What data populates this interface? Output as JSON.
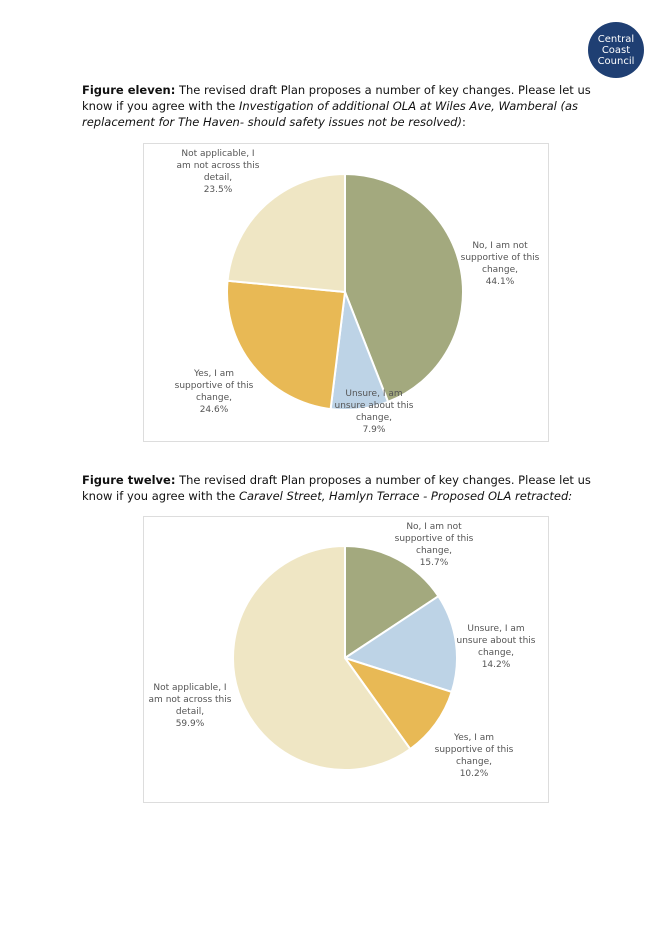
{
  "logo": {
    "lines": [
      "Central",
      "Coast",
      "Council"
    ]
  },
  "figures": [
    {
      "label": "Figure eleven:",
      "text": "The revised draft Plan proposes a number of key changes. Please let us know if you agree with the ",
      "italic": "Investigation of additional OLA at Wiles Ave, Wamberal (as replacement for The Haven- should safety issues not be resolved)",
      "end": ":"
    },
    {
      "label": "Figure twelve:",
      "text": "The revised draft Plan proposes a number of key changes. Please let us know if you agree with the ",
      "italic": "Caravel Street, Hamlyn Terrace - Proposed OLA retracted:"
    }
  ],
  "chart_data": [
    {
      "type": "pie",
      "categories": [
        "No, I am not supportive of this change,",
        "Unsure, I am unsure about this change,",
        "Yes, I am supportive of this change,",
        "Not applicable, I am not across this detail,"
      ],
      "values": [
        44.1,
        7.9,
        24.6,
        23.5
      ],
      "value_labels": [
        "44.1%",
        "7.9%",
        "24.6%",
        "23.5%"
      ],
      "colors": [
        "#a3a97e",
        "#bdd3e6",
        "#e8b955",
        "#efe6c4"
      ]
    },
    {
      "type": "pie",
      "categories": [
        "No, I am not supportive of this change,",
        "Unsure, I am unsure about this change,",
        "Yes, I am supportive of this change,",
        "Not applicable, I am not across this detail,"
      ],
      "values": [
        15.7,
        14.2,
        10.2,
        59.9
      ],
      "value_labels": [
        "15.7%",
        "14.2%",
        "10.2%",
        "59.9%"
      ],
      "colors": [
        "#a3a97e",
        "#bdd3e6",
        "#e8b955",
        "#efe6c4"
      ]
    }
  ]
}
